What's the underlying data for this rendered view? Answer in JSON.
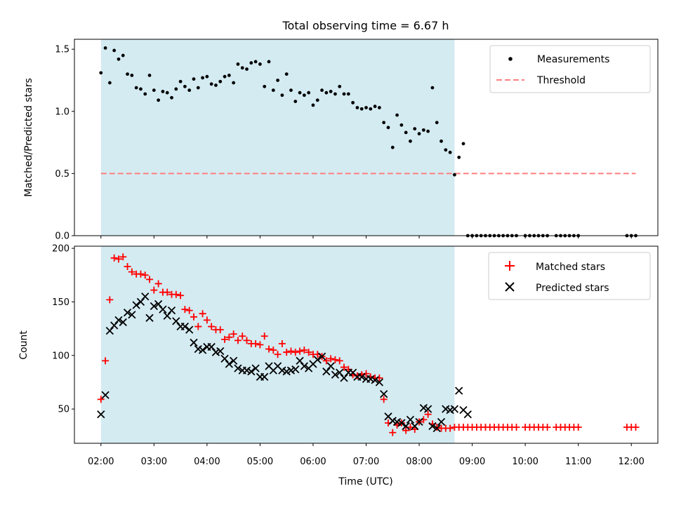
{
  "figure": {
    "title": "Total observing time = 6.67 h",
    "xlabel": "Time (UTC)",
    "x_ticks": [
      "02:00",
      "03:00",
      "04:00",
      "05:00",
      "06:00",
      "07:00",
      "08:00",
      "09:00",
      "10:00",
      "11:00",
      "12:00"
    ]
  },
  "colors": {
    "shade": "#add8e6",
    "threshold": "#ff7f7f",
    "matched": "#ff0000",
    "predicted": "#000000",
    "measurement": "#000000"
  },
  "chart_data": [
    {
      "type": "scatter",
      "ylabel": "Matched/Predicted stars",
      "xlim": [
        "01:30",
        "12:30"
      ],
      "ylim": [
        0,
        1.58
      ],
      "y_ticks": [
        "0.0",
        "0.5",
        "1.0",
        "1.5"
      ],
      "shaded_interval": [
        "02:00",
        "08:40"
      ],
      "threshold": {
        "name": "Threshold",
        "y": 0.5,
        "x_range": [
          "02:00",
          "12:05"
        ]
      },
      "series": [
        {
          "name": "Measurements",
          "x": [
            "02:00",
            "02:05",
            "02:10",
            "02:15",
            "02:20",
            "02:25",
            "02:30",
            "02:35",
            "02:40",
            "02:45",
            "02:50",
            "02:55",
            "03:00",
            "03:05",
            "03:10",
            "03:15",
            "03:20",
            "03:25",
            "03:30",
            "03:35",
            "03:40",
            "03:45",
            "03:50",
            "03:55",
            "04:00",
            "04:05",
            "04:10",
            "04:15",
            "04:20",
            "04:25",
            "04:30",
            "04:35",
            "04:40",
            "04:45",
            "04:50",
            "04:55",
            "05:00",
            "05:05",
            "05:10",
            "05:15",
            "05:20",
            "05:25",
            "05:30",
            "05:35",
            "05:40",
            "05:45",
            "05:50",
            "05:55",
            "06:00",
            "06:05",
            "06:10",
            "06:15",
            "06:20",
            "06:25",
            "06:30",
            "06:35",
            "06:40",
            "06:45",
            "06:50",
            "06:55",
            "07:00",
            "07:05",
            "07:10",
            "07:15",
            "07:20",
            "07:25",
            "07:30",
            "07:35",
            "07:40",
            "07:45",
            "07:50",
            "07:55",
            "08:00",
            "08:05",
            "08:10",
            "08:15",
            "08:20",
            "08:25",
            "08:30",
            "08:35",
            "08:40",
            "08:45",
            "08:50",
            "08:55",
            "09:00",
            "09:05",
            "09:10",
            "09:15",
            "09:20",
            "09:25",
            "09:30",
            "09:35",
            "09:40",
            "09:45",
            "09:50",
            "10:00",
            "10:05",
            "10:10",
            "10:15",
            "10:20",
            "10:25",
            "10:35",
            "10:40",
            "10:45",
            "10:50",
            "10:55",
            "11:00",
            "11:55",
            "12:00",
            "12:05"
          ],
          "y": [
            1.31,
            1.51,
            1.23,
            1.49,
            1.42,
            1.45,
            1.3,
            1.29,
            1.19,
            1.18,
            1.14,
            1.29,
            1.17,
            1.09,
            1.16,
            1.15,
            1.11,
            1.18,
            1.24,
            1.2,
            1.17,
            1.26,
            1.19,
            1.27,
            1.28,
            1.22,
            1.21,
            1.24,
            1.28,
            1.29,
            1.23,
            1.38,
            1.35,
            1.34,
            1.39,
            1.4,
            1.38,
            1.2,
            1.4,
            1.17,
            1.25,
            1.13,
            1.3,
            1.17,
            1.08,
            1.15,
            1.13,
            1.15,
            1.05,
            1.09,
            1.17,
            1.15,
            1.16,
            1.14,
            1.2,
            1.14,
            1.14,
            1.07,
            1.03,
            1.02,
            1.03,
            1.02,
            1.04,
            1.03,
            0.91,
            0.87,
            0.71,
            0.97,
            0.89,
            0.83,
            0.76,
            0.86,
            0.82,
            0.85,
            0.84,
            1.19,
            0.91,
            0.76,
            0.69,
            0.67,
            0.49,
            0.63,
            0.74,
            0,
            0,
            0,
            0,
            0,
            0,
            0,
            0,
            0,
            0,
            0,
            0,
            0,
            0,
            0,
            0,
            0,
            0,
            0,
            0,
            0,
            0,
            0,
            0,
            0,
            0,
            0
          ]
        }
      ]
    },
    {
      "type": "scatter",
      "ylabel": "Count",
      "xlim": [
        "01:30",
        "12:30"
      ],
      "ylim": [
        18,
        202
      ],
      "y_ticks": [
        "50",
        "100",
        "150",
        "200"
      ],
      "shaded_interval": [
        "02:00",
        "08:40"
      ],
      "series": [
        {
          "name": "Matched stars",
          "x": [
            "02:00",
            "02:05",
            "02:10",
            "02:15",
            "02:20",
            "02:25",
            "02:30",
            "02:35",
            "02:40",
            "02:45",
            "02:50",
            "02:55",
            "03:00",
            "03:05",
            "03:10",
            "03:15",
            "03:20",
            "03:25",
            "03:30",
            "03:35",
            "03:40",
            "03:45",
            "03:50",
            "03:55",
            "04:00",
            "04:05",
            "04:10",
            "04:15",
            "04:20",
            "04:25",
            "04:30",
            "04:35",
            "04:40",
            "04:45",
            "04:50",
            "04:55",
            "05:00",
            "05:05",
            "05:10",
            "05:15",
            "05:20",
            "05:25",
            "05:30",
            "05:35",
            "05:40",
            "05:45",
            "05:50",
            "05:55",
            "06:00",
            "06:05",
            "06:10",
            "06:15",
            "06:20",
            "06:25",
            "06:30",
            "06:35",
            "06:40",
            "06:45",
            "06:50",
            "06:55",
            "07:00",
            "07:05",
            "07:10",
            "07:15",
            "07:20",
            "07:25",
            "07:30",
            "07:35",
            "07:40",
            "07:45",
            "07:50",
            "07:55",
            "08:00",
            "08:05",
            "08:10",
            "08:15",
            "08:20",
            "08:25",
            "08:30",
            "08:35",
            "08:40",
            "08:45",
            "08:50",
            "08:55",
            "09:00",
            "09:05",
            "09:10",
            "09:15",
            "09:20",
            "09:25",
            "09:30",
            "09:35",
            "09:40",
            "09:45",
            "09:50",
            "10:00",
            "10:05",
            "10:10",
            "10:15",
            "10:20",
            "10:25",
            "10:35",
            "10:40",
            "10:45",
            "10:50",
            "10:55",
            "11:00",
            "11:55",
            "12:00",
            "12:05"
          ],
          "y": [
            59,
            95,
            152,
            191,
            190,
            192,
            183,
            178,
            176,
            176,
            175,
            171,
            161,
            167,
            159,
            159,
            157,
            157,
            156,
            143,
            142,
            136,
            127,
            139,
            133,
            127,
            124,
            124,
            115,
            117,
            120,
            114,
            118,
            114,
            111,
            111,
            110,
            118,
            106,
            105,
            101,
            111,
            103,
            104,
            103,
            104,
            105,
            103,
            101,
            101,
            99,
            95,
            97,
            96,
            95,
            89,
            87,
            82,
            81,
            82,
            83,
            80,
            79,
            79,
            59,
            37,
            28,
            35,
            37,
            30,
            33,
            31,
            38,
            40,
            45,
            36,
            33,
            32,
            32,
            32,
            33,
            33,
            33,
            33,
            33,
            33,
            33,
            33,
            33,
            33,
            33,
            33,
            33,
            33,
            33,
            33,
            33,
            33,
            33,
            33,
            33,
            33,
            33,
            33,
            33,
            33,
            33,
            33,
            33,
            33
          ]
        },
        {
          "name": "Predicted stars",
          "x": [
            "02:00",
            "02:05",
            "02:10",
            "02:15",
            "02:20",
            "02:25",
            "02:30",
            "02:35",
            "02:40",
            "02:45",
            "02:50",
            "02:55",
            "03:00",
            "03:05",
            "03:10",
            "03:15",
            "03:20",
            "03:25",
            "03:30",
            "03:35",
            "03:40",
            "03:45",
            "03:50",
            "03:55",
            "04:00",
            "04:05",
            "04:10",
            "04:15",
            "04:20",
            "04:25",
            "04:30",
            "04:35",
            "04:40",
            "04:45",
            "04:50",
            "04:55",
            "05:00",
            "05:05",
            "05:10",
            "05:15",
            "05:20",
            "05:25",
            "05:30",
            "05:35",
            "05:40",
            "05:45",
            "05:50",
            "05:55",
            "06:00",
            "06:05",
            "06:10",
            "06:15",
            "06:20",
            "06:25",
            "06:30",
            "06:35",
            "06:40",
            "06:45",
            "06:50",
            "06:55",
            "07:00",
            "07:05",
            "07:10",
            "07:15",
            "07:20",
            "07:25",
            "07:30",
            "07:35",
            "07:40",
            "07:45",
            "07:50",
            "07:55",
            "08:00",
            "08:05",
            "08:10",
            "08:15",
            "08:20",
            "08:25",
            "08:30",
            "08:35",
            "08:40",
            "08:45",
            "08:50",
            "08:55"
          ],
          "y": [
            45,
            63,
            123,
            128,
            133,
            131,
            140,
            138,
            147,
            150,
            155,
            135,
            146,
            148,
            143,
            137,
            142,
            132,
            127,
            127,
            124,
            112,
            106,
            105,
            108,
            108,
            103,
            104,
            97,
            92,
            95,
            88,
            86,
            86,
            85,
            88,
            80,
            80,
            90,
            86,
            90,
            86,
            85,
            86,
            87,
            95,
            90,
            88,
            92,
            96,
            99,
            85,
            90,
            82,
            84,
            79,
            84,
            84,
            80,
            80,
            78,
            78,
            77,
            75,
            64,
            43,
            39,
            38,
            37,
            34,
            40,
            34,
            38,
            51,
            50,
            34,
            32,
            38,
            50,
            49,
            50,
            67,
            49,
            45
          ]
        }
      ]
    }
  ]
}
